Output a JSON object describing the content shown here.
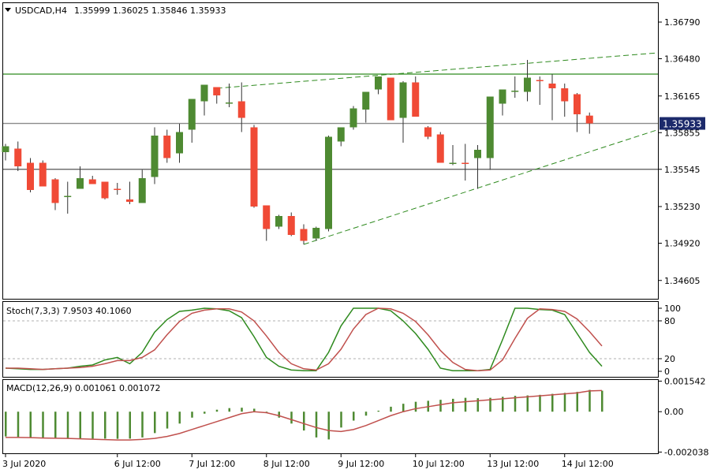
{
  "header": {
    "symbol": "USDCAD,H4",
    "ohlc": "1.35999 1.36025 1.35846 1.35933"
  },
  "colors": {
    "bull": "#4e8a32",
    "bear": "#f04a36",
    "line_green": "#2e8a1e",
    "hline_gray": "#8a8a8a",
    "stoch_signal": "#c0504d",
    "macd_signal": "#c0504d",
    "price_label_bg": "#1c2a6b"
  },
  "chart_data": [
    {
      "type": "candlestick",
      "title": "USDCAD,H4",
      "ylim": [
        1.3445,
        1.3695
      ],
      "y_ticks": [
        "1.36790",
        "1.36480",
        "1.36165",
        "1.35855",
        "1.35545",
        "1.35230",
        "1.34920",
        "1.34605"
      ],
      "current_price_label": "1.35933",
      "x_labels": [
        "3 Jul 2020",
        "6 Jul 12:00",
        "7 Jul 12:00",
        "8 Jul 12:00",
        "9 Jul 12:00",
        "10 Jul 12:00",
        "13 Jul 12:00",
        "14 Jul 12:00"
      ],
      "x_label_bars": [
        0,
        9,
        15,
        21,
        27,
        33,
        39,
        45
      ],
      "candles": [
        {
          "o": 1.3569,
          "h": 1.3576,
          "l": 1.3562,
          "c": 1.3574
        },
        {
          "o": 1.3572,
          "h": 1.3578,
          "l": 1.3553,
          "c": 1.3557
        },
        {
          "o": 1.356,
          "h": 1.3564,
          "l": 1.3535,
          "c": 1.3537
        },
        {
          "o": 1.356,
          "h": 1.3562,
          "l": 1.354,
          "c": 1.354
        },
        {
          "o": 1.3546,
          "h": 1.3547,
          "l": 1.352,
          "c": 1.3526
        },
        {
          "o": 1.3532,
          "h": 1.3544,
          "l": 1.3517,
          "c": 1.3532
        },
        {
          "o": 1.3538,
          "h": 1.3557,
          "l": 1.3538,
          "c": 1.3547
        },
        {
          "o": 1.3546,
          "h": 1.3549,
          "l": 1.3542,
          "c": 1.3542
        },
        {
          "o": 1.3544,
          "h": 1.3544,
          "l": 1.3529,
          "c": 1.353
        },
        {
          "o": 1.3538,
          "h": 1.3543,
          "l": 1.3533,
          "c": 1.3537
        },
        {
          "o": 1.3529,
          "h": 1.3544,
          "l": 1.3525,
          "c": 1.3527
        },
        {
          "o": 1.3526,
          "h": 1.3554,
          "l": 1.3526,
          "c": 1.3547
        },
        {
          "o": 1.3548,
          "h": 1.359,
          "l": 1.3542,
          "c": 1.3583
        },
        {
          "o": 1.3583,
          "h": 1.3588,
          "l": 1.356,
          "c": 1.3564
        },
        {
          "o": 1.3568,
          "h": 1.3593,
          "l": 1.356,
          "c": 1.3586
        },
        {
          "o": 1.3588,
          "h": 1.3614,
          "l": 1.3577,
          "c": 1.3614
        },
        {
          "o": 1.3612,
          "h": 1.3626,
          "l": 1.36,
          "c": 1.3626
        },
        {
          "o": 1.3624,
          "h": 1.3624,
          "l": 1.361,
          "c": 1.3617
        },
        {
          "o": 1.3611,
          "h": 1.3627,
          "l": 1.3607,
          "c": 1.3611
        },
        {
          "o": 1.3612,
          "h": 1.3628,
          "l": 1.3586,
          "c": 1.3598
        },
        {
          "o": 1.359,
          "h": 1.3592,
          "l": 1.3522,
          "c": 1.3523
        },
        {
          "o": 1.3524,
          "h": 1.3524,
          "l": 1.3494,
          "c": 1.3504
        },
        {
          "o": 1.3506,
          "h": 1.3516,
          "l": 1.3504,
          "c": 1.3515
        },
        {
          "o": 1.3515,
          "h": 1.3518,
          "l": 1.3498,
          "c": 1.3499
        },
        {
          "o": 1.3504,
          "h": 1.3508,
          "l": 1.3491,
          "c": 1.3494
        },
        {
          "o": 1.3496,
          "h": 1.3506,
          "l": 1.3494,
          "c": 1.3505
        },
        {
          "o": 1.3504,
          "h": 1.3583,
          "l": 1.3502,
          "c": 1.3582
        },
        {
          "o": 1.3578,
          "h": 1.359,
          "l": 1.3574,
          "c": 1.359
        },
        {
          "o": 1.359,
          "h": 1.3608,
          "l": 1.3588,
          "c": 1.3606
        },
        {
          "o": 1.3605,
          "h": 1.362,
          "l": 1.3594,
          "c": 1.362
        },
        {
          "o": 1.3622,
          "h": 1.3633,
          "l": 1.3618,
          "c": 1.3633
        },
        {
          "o": 1.3632,
          "h": 1.3632,
          "l": 1.3596,
          "c": 1.3596
        },
        {
          "o": 1.3598,
          "h": 1.3629,
          "l": 1.3577,
          "c": 1.3628
        },
        {
          "o": 1.3628,
          "h": 1.3633,
          "l": 1.3599,
          "c": 1.3599
        },
        {
          "o": 1.359,
          "h": 1.3591,
          "l": 1.358,
          "c": 1.3582
        },
        {
          "o": 1.3584,
          "h": 1.3586,
          "l": 1.356,
          "c": 1.356
        },
        {
          "o": 1.356,
          "h": 1.3575,
          "l": 1.3558,
          "c": 1.356
        },
        {
          "o": 1.356,
          "h": 1.3576,
          "l": 1.3545,
          "c": 1.3559
        },
        {
          "o": 1.3564,
          "h": 1.3575,
          "l": 1.3538,
          "c": 1.3571
        },
        {
          "o": 1.3564,
          "h": 1.3616,
          "l": 1.3554,
          "c": 1.3616
        },
        {
          "o": 1.361,
          "h": 1.3621,
          "l": 1.36,
          "c": 1.3622
        },
        {
          "o": 1.3621,
          "h": 1.3633,
          "l": 1.3615,
          "c": 1.3621
        },
        {
          "o": 1.362,
          "h": 1.3647,
          "l": 1.3612,
          "c": 1.3632
        },
        {
          "o": 1.363,
          "h": 1.3633,
          "l": 1.3609,
          "c": 1.3629
        },
        {
          "o": 1.3627,
          "h": 1.3635,
          "l": 1.3596,
          "c": 1.3623
        },
        {
          "o": 1.3623,
          "h": 1.3627,
          "l": 1.3599,
          "c": 1.3612
        },
        {
          "o": 1.3618,
          "h": 1.3619,
          "l": 1.3586,
          "c": 1.3601
        },
        {
          "o": 1.35999,
          "h": 1.36025,
          "l": 1.35846,
          "c": 1.35933
        }
      ],
      "horizontal_lines": [
        {
          "price": 1.3635,
          "style": "solid",
          "color": "#2e8a1e"
        },
        {
          "price": 1.35933,
          "style": "solid",
          "color": "#8a8a8a"
        },
        {
          "price": 1.35545,
          "style": "solid",
          "color": "#555555"
        }
      ],
      "trend_lines": [
        {
          "from": {
            "bar": 17,
            "price": 1.3623
          },
          "to": {
            "bar": 54,
            "price": 1.3653
          },
          "style": "dashed"
        },
        {
          "from": {
            "bar": 24,
            "price": 1.3491
          },
          "to": {
            "bar": 54,
            "price": 1.3588
          },
          "style": "dashed"
        }
      ]
    },
    {
      "type": "line",
      "title": "Stoch(7,3,3) 7.9503 40.1060",
      "ylim": [
        0,
        100
      ],
      "y_ticks": [
        "100",
        "80",
        "20",
        "0"
      ],
      "levels": [
        80,
        20
      ],
      "series": [
        {
          "name": "%K",
          "values": [
            5,
            4,
            3,
            3,
            4,
            5,
            8,
            10,
            18,
            22,
            12,
            30,
            62,
            82,
            95,
            97,
            100,
            99,
            96,
            85,
            55,
            22,
            8,
            2,
            1,
            1,
            30,
            72,
            100,
            100,
            100,
            96,
            80,
            60,
            35,
            5,
            1,
            1,
            1,
            3,
            50,
            100,
            100,
            98,
            97,
            90,
            60,
            30,
            7.9503
          ]
        },
        {
          "name": "%D",
          "values": [
            5,
            5,
            4,
            3,
            4,
            5,
            6,
            8,
            12,
            17,
            17,
            22,
            34,
            58,
            79,
            92,
            97,
            99,
            99,
            94,
            80,
            56,
            30,
            12,
            4,
            2,
            12,
            35,
            67,
            90,
            100,
            99,
            92,
            79,
            58,
            33,
            14,
            3,
            1,
            2,
            18,
            52,
            84,
            99,
            98,
            95,
            83,
            63,
            40.106
          ]
        }
      ]
    },
    {
      "type": "bar",
      "title": "MACD(12,26,9) 0.001061 0.001072",
      "ylim": [
        -0.0021,
        0.0016
      ],
      "y_ticks": [
        "0.001542",
        "0.00",
        "-0.002038"
      ],
      "series": [
        {
          "name": "MACD",
          "values": [
            -0.00125,
            -0.00128,
            -0.0013,
            -0.00132,
            -0.00135,
            -0.00136,
            -0.00136,
            -0.00136,
            -0.00136,
            -0.00137,
            -0.00136,
            -0.0013,
            -0.00108,
            -0.00085,
            -0.0006,
            -0.0003,
            -0.0001,
            0.0001,
            0.00018,
            0.0002,
            0.00015,
            -5e-05,
            -0.0003,
            -0.0006,
            -0.00095,
            -0.0013,
            -0.0014,
            -0.0008,
            -0.00045,
            -0.0002,
            5e-05,
            0.00025,
            0.0004,
            0.0005,
            0.00055,
            0.0006,
            0.00065,
            0.0007,
            0.00068,
            0.0007,
            0.00075,
            0.0008,
            0.00082,
            0.00085,
            0.0009,
            0.00095,
            0.001,
            0.0011,
            0.00106
          ]
        },
        {
          "name": "Signal",
          "values": [
            -0.0013,
            -0.0013,
            -0.00131,
            -0.00133,
            -0.00134,
            -0.00135,
            -0.00137,
            -0.00139,
            -0.00141,
            -0.00143,
            -0.00143,
            -0.0014,
            -0.00135,
            -0.00125,
            -0.0011,
            -0.0009,
            -0.0007,
            -0.0005,
            -0.0003,
            -0.0001,
            0.0,
            -5e-05,
            -0.0002,
            -0.0004,
            -0.0006,
            -0.0008,
            -0.00095,
            -0.001,
            -0.0009,
            -0.0007,
            -0.00045,
            -0.0002,
            0.0,
            0.00015,
            0.00025,
            0.00035,
            0.00045,
            0.0005,
            0.00055,
            0.0006,
            0.00065,
            0.0007,
            0.00075,
            0.0008,
            0.00085,
            0.0009,
            0.00095,
            0.00105,
            0.00107
          ]
        }
      ]
    }
  ]
}
